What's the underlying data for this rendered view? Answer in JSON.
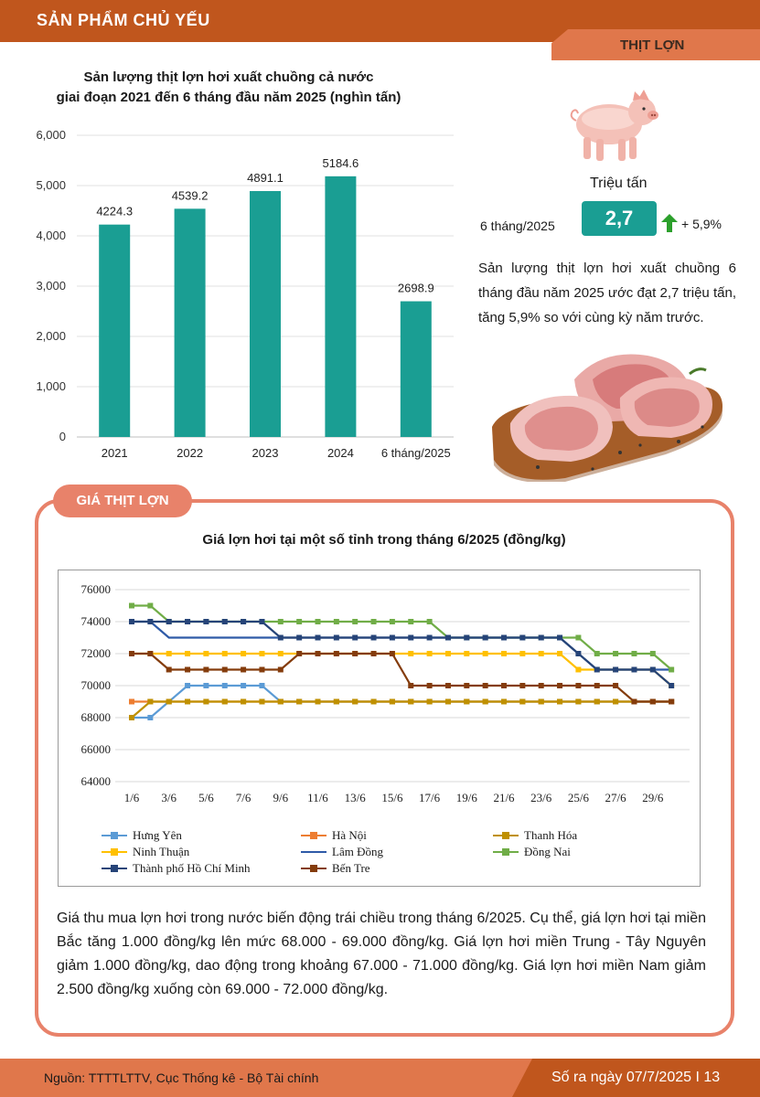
{
  "header": {
    "section": "SẢN PHẨM CHỦ YẾU",
    "tab": "THỊT LỢN"
  },
  "production": {
    "title_line1": "Sản lượng thịt lợn hơi xuất chuồng cả nước",
    "title_line2": "giai đoạn 2021 đến 6 tháng đầu năm 2025 (nghìn tấn)"
  },
  "chart_data": [
    {
      "type": "bar",
      "categories": [
        "2021",
        "2022",
        "2023",
        "2024",
        "6 tháng/2025"
      ],
      "values": [
        4224.3,
        4539.2,
        4891.1,
        5184.6,
        2698.9
      ],
      "value_labels": [
        "4224.3",
        "4539.2",
        "4891.1",
        "5184.6",
        "2698.9"
      ],
      "ylim": [
        0,
        6000
      ],
      "yticks": [
        0,
        1000,
        2000,
        3000,
        4000,
        5000,
        6000
      ],
      "ytick_labels": [
        "0",
        "1,000",
        "2,000",
        "3,000",
        "4,000",
        "5,000",
        "6,000"
      ],
      "grid": true,
      "color": "#1a9e93"
    },
    {
      "type": "line",
      "title": "Giá lợn hơi tại một số tỉnh trong tháng 6/2025 (đồng/kg)",
      "x_labels": [
        "1/6",
        "3/6",
        "5/6",
        "7/6",
        "9/6",
        "11/6",
        "13/6",
        "15/6",
        "17/6",
        "19/6",
        "21/6",
        "23/6",
        "25/6",
        "27/6",
        "29/6"
      ],
      "ylim": [
        64000,
        76000
      ],
      "yticks": [
        64000,
        66000,
        68000,
        70000,
        72000,
        74000,
        76000
      ],
      "grid": true,
      "legend_position": "bottom",
      "series": [
        {
          "name": "Hưng Yên",
          "color": "#5b9bd5",
          "marker": "square",
          "values": [
            68000,
            68000,
            69000,
            70000,
            70000,
            70000,
            70000,
            70000,
            69000,
            69000,
            69000,
            69000,
            69000,
            69000,
            69000,
            69000,
            69000,
            69000,
            69000,
            69000,
            69000,
            69000,
            69000,
            69000,
            69000,
            69000,
            69000,
            69000,
            69000,
            69000
          ]
        },
        {
          "name": "Hà Nội",
          "color": "#ed7d31",
          "marker": "square",
          "values": [
            69000,
            69000,
            69000,
            69000,
            69000,
            69000,
            69000,
            69000,
            69000,
            69000,
            69000,
            69000,
            69000,
            69000,
            69000,
            69000,
            69000,
            69000,
            69000,
            69000,
            69000,
            69000,
            69000,
            69000,
            69000,
            69000,
            69000,
            69000,
            69000,
            69000
          ]
        },
        {
          "name": "Thanh Hóa",
          "color": "#bf9000",
          "marker": "square",
          "values": [
            68000,
            69000,
            69000,
            69000,
            69000,
            69000,
            69000,
            69000,
            69000,
            69000,
            69000,
            69000,
            69000,
            69000,
            69000,
            69000,
            69000,
            69000,
            69000,
            69000,
            69000,
            69000,
            69000,
            69000,
            69000,
            69000,
            69000,
            69000,
            69000,
            69000
          ]
        },
        {
          "name": "Ninh Thuận",
          "color": "#ffc000",
          "marker": "square",
          "values": [
            72000,
            72000,
            72000,
            72000,
            72000,
            72000,
            72000,
            72000,
            72000,
            72000,
            72000,
            72000,
            72000,
            72000,
            72000,
            72000,
            72000,
            72000,
            72000,
            72000,
            72000,
            72000,
            72000,
            72000,
            71000,
            71000,
            71000,
            71000,
            71000,
            70000
          ]
        },
        {
          "name": "Lâm Đồng",
          "color": "#2e5aa7",
          "marker": "none",
          "values": [
            74000,
            74000,
            73000,
            73000,
            73000,
            73000,
            73000,
            73000,
            73000,
            73000,
            73000,
            73000,
            73000,
            73000,
            73000,
            73000,
            73000,
            73000,
            73000,
            73000,
            73000,
            73000,
            73000,
            73000,
            72000,
            71000,
            71000,
            71000,
            71000,
            71000
          ]
        },
        {
          "name": "Đồng Nai",
          "color": "#70ad47",
          "marker": "square",
          "values": [
            75000,
            75000,
            74000,
            74000,
            74000,
            74000,
            74000,
            74000,
            74000,
            74000,
            74000,
            74000,
            74000,
            74000,
            74000,
            74000,
            74000,
            73000,
            73000,
            73000,
            73000,
            73000,
            73000,
            73000,
            73000,
            72000,
            72000,
            72000,
            72000,
            71000
          ]
        },
        {
          "name": "Thành phố Hồ Chí Minh",
          "color": "#264478",
          "marker": "square",
          "values": [
            74000,
            74000,
            74000,
            74000,
            74000,
            74000,
            74000,
            74000,
            73000,
            73000,
            73000,
            73000,
            73000,
            73000,
            73000,
            73000,
            73000,
            73000,
            73000,
            73000,
            73000,
            73000,
            73000,
            73000,
            72000,
            71000,
            71000,
            71000,
            71000,
            70000
          ]
        },
        {
          "name": "Bến Tre",
          "color": "#843c0c",
          "marker": "square",
          "values": [
            72000,
            72000,
            71000,
            71000,
            71000,
            71000,
            71000,
            71000,
            71000,
            72000,
            72000,
            72000,
            72000,
            72000,
            72000,
            70000,
            70000,
            70000,
            70000,
            70000,
            70000,
            70000,
            70000,
            70000,
            70000,
            70000,
            70000,
            69000,
            69000,
            69000
          ]
        }
      ]
    }
  ],
  "info": {
    "unit": "Triệu tấn",
    "period": "6 tháng/2025",
    "value": "2,7",
    "change": "+ 5,9%",
    "summary": "Sản lượng thịt lợn hơi xuất chuồng 6 tháng đầu năm 2025 ước đạt 2,7 triệu tấn, tăng 5,9% so với cùng kỳ năm trước.",
    "arrow_color": "#2ca02c"
  },
  "price_section": {
    "tab": "GIÁ THỊT LỢN",
    "description": "Giá thu mua lợn hơi trong nước biến động trái chiều trong tháng 6/2025. Cụ thể, giá lợn hơi tại miền Bắc tăng 1.000 đồng/kg lên mức 68.000 - 69.000 đồng/kg. Giá lợn hơi miền Trung - Tây Nguyên giảm 1.000 đồng/kg, dao động trong khoảng 67.000 - 71.000 đồng/kg. Giá lợn hơi miền Nam giảm 2.500 đồng/kg xuống còn 69.000 - 72.000 đồng/kg."
  },
  "footer": {
    "source": "Nguồn: TTTTLTTV, Cục Thống kê - Bộ Tài chính",
    "issue": "Số ra ngày 07/7/2025  I 13"
  },
  "images": {
    "pig": "pig-illustration",
    "meat": "pork-on-board-illustration"
  }
}
